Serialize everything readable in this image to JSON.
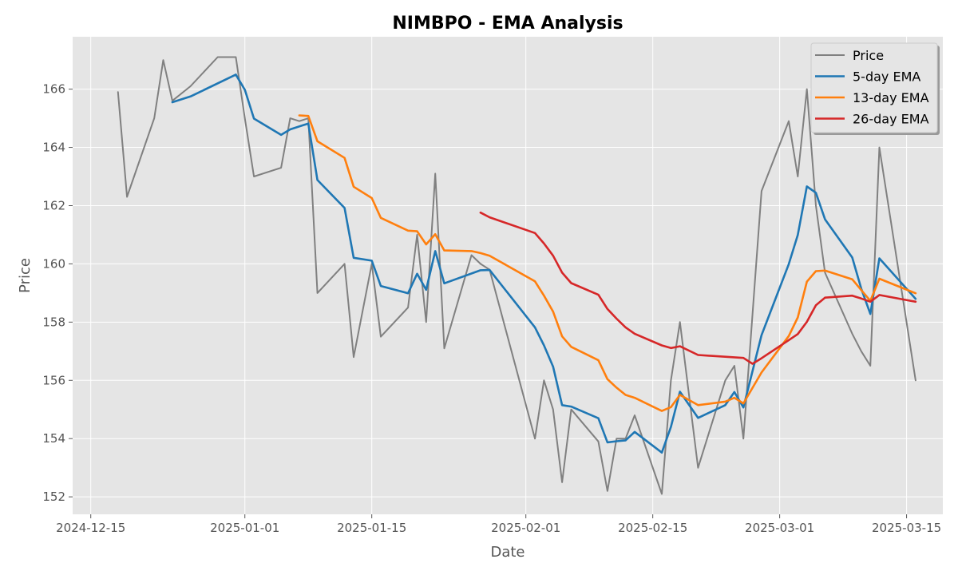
{
  "chart_data": {
    "type": "line",
    "title": "NIMBPO - EMA Analysis",
    "xlabel": "Date",
    "ylabel": "Price",
    "xlim": [
      "2024-12-13",
      "2025-03-19"
    ],
    "ylim": [
      151.4,
      167.8
    ],
    "x_ticks": [
      "2024-12-15",
      "2025-01-01",
      "2025-01-15",
      "2025-02-01",
      "2025-02-15",
      "2025-03-01",
      "2025-03-15"
    ],
    "y_ticks": [
      152,
      154,
      156,
      158,
      160,
      162,
      164,
      166
    ],
    "grid": true,
    "legend_position": "top-right",
    "series": [
      {
        "name": "Price",
        "color": "#808080",
        "x": [
          "2024-12-18",
          "2024-12-19",
          "2024-12-22",
          "2024-12-23",
          "2024-12-24",
          "2024-12-26",
          "2024-12-29",
          "2024-12-31",
          "2025-01-01",
          "2025-01-02",
          "2025-01-05",
          "2025-01-06",
          "2025-01-07",
          "2025-01-08",
          "2025-01-09",
          "2025-01-12",
          "2025-01-13",
          "2025-01-15",
          "2025-01-16",
          "2025-01-19",
          "2025-01-20",
          "2025-01-21",
          "2025-01-22",
          "2025-01-23",
          "2025-01-26",
          "2025-01-27",
          "2025-01-28",
          "2025-02-02",
          "2025-02-03",
          "2025-02-04",
          "2025-02-05",
          "2025-02-06",
          "2025-02-09",
          "2025-02-10",
          "2025-02-11",
          "2025-02-12",
          "2025-02-13",
          "2025-02-16",
          "2025-02-17",
          "2025-02-18",
          "2025-02-20",
          "2025-02-23",
          "2025-02-24",
          "2025-02-25",
          "2025-02-27",
          "2025-03-02",
          "2025-03-03",
          "2025-03-04",
          "2025-03-05",
          "2025-03-06",
          "2025-03-09",
          "2025-03-10",
          "2025-03-11",
          "2025-03-12",
          "2025-03-16"
        ],
        "values": [
          165.9,
          162.3,
          165,
          167,
          165.6,
          166.1,
          167.1,
          167.1,
          165,
          163,
          163.3,
          165,
          164.9,
          165,
          159,
          160,
          156.8,
          160,
          157.5,
          158.5,
          161,
          158,
          163.1,
          157.1,
          160.3,
          160,
          159.8,
          154,
          156,
          155,
          152.5,
          155,
          153.9,
          152.2,
          154,
          154,
          154.8,
          152.1,
          156,
          158,
          153,
          156,
          156.5,
          154,
          162.5,
          164.9,
          163,
          166,
          162,
          159.7,
          157.6,
          157,
          156.5,
          164,
          156
        ]
      },
      {
        "name": "5-day EMA",
        "color": "#1f77b4",
        "x": [
          "2024-12-24",
          "2024-12-26",
          "2024-12-31",
          "2025-01-01",
          "2025-01-02",
          "2025-01-05",
          "2025-01-06",
          "2025-01-08",
          "2025-01-09",
          "2025-01-12",
          "2025-01-13",
          "2025-01-15",
          "2025-01-16",
          "2025-01-19",
          "2025-01-20",
          "2025-01-21",
          "2025-01-22",
          "2025-01-23",
          "2025-01-27",
          "2025-01-28",
          "2025-02-02",
          "2025-02-03",
          "2025-02-04",
          "2025-02-05",
          "2025-02-06",
          "2025-02-09",
          "2025-02-10",
          "2025-02-11",
          "2025-02-12",
          "2025-02-13",
          "2025-02-16",
          "2025-02-17",
          "2025-02-18",
          "2025-02-20",
          "2025-02-23",
          "2025-02-24",
          "2025-02-25",
          "2025-02-27",
          "2025-03-02",
          "2025-03-03",
          "2025-03-04",
          "2025-03-05",
          "2025-03-06",
          "2025-03-09",
          "2025-03-10",
          "2025-03-11",
          "2025-03-12",
          "2025-03-16"
        ],
        "values": [
          165.55,
          165.75,
          166.5,
          165.98,
          164.99,
          164.43,
          164.62,
          164.82,
          162.88,
          161.92,
          160.21,
          160.11,
          159.24,
          158.99,
          159.66,
          159.11,
          160.44,
          159.33,
          159.78,
          159.79,
          157.82,
          157.2,
          156.47,
          155.15,
          155.1,
          154.7,
          153.87,
          153.91,
          153.94,
          154.23,
          153.52,
          154.4,
          155.61,
          154.71,
          155.15,
          155.6,
          155.07,
          157.55,
          159.99,
          160.99,
          162.66,
          162.44,
          161.53,
          160.22,
          159.15,
          158.28,
          160.19,
          158.8
        ]
      },
      {
        "name": "13-day EMA",
        "color": "#ff7f0e",
        "x": [
          "2025-01-07",
          "2025-01-08",
          "2025-01-09",
          "2025-01-12",
          "2025-01-13",
          "2025-01-15",
          "2025-01-16",
          "2025-01-19",
          "2025-01-20",
          "2025-01-21",
          "2025-01-22",
          "2025-01-23",
          "2025-01-26",
          "2025-01-27",
          "2025-01-28",
          "2025-02-02",
          "2025-02-03",
          "2025-02-04",
          "2025-02-05",
          "2025-02-06",
          "2025-02-09",
          "2025-02-10",
          "2025-02-11",
          "2025-02-12",
          "2025-02-13",
          "2025-02-16",
          "2025-02-17",
          "2025-02-18",
          "2025-02-20",
          "2025-02-23",
          "2025-02-24",
          "2025-02-25",
          "2025-02-27",
          "2025-03-02",
          "2025-03-03",
          "2025-03-04",
          "2025-03-05",
          "2025-03-06",
          "2025-03-09",
          "2025-03-10",
          "2025-03-11",
          "2025-03-12",
          "2025-03-16"
        ],
        "values": [
          165.1,
          165.08,
          164.21,
          163.64,
          162.65,
          162.26,
          161.58,
          161.14,
          161.12,
          160.67,
          161.02,
          160.46,
          160.44,
          160.37,
          160.28,
          159.4,
          158.91,
          158.36,
          157.51,
          157.15,
          156.69,
          156.04,
          155.75,
          155.5,
          155.4,
          154.95,
          155.08,
          155.5,
          155.15,
          155.27,
          155.4,
          155.21,
          156.27,
          157.52,
          158.16,
          159.39,
          159.75,
          159.77,
          159.47,
          159.1,
          158.73,
          159.49,
          158.99
        ]
      },
      {
        "name": "26-day EMA",
        "color": "#d62728",
        "x": [
          "2025-01-27",
          "2025-01-28",
          "2025-02-02",
          "2025-02-03",
          "2025-02-04",
          "2025-02-05",
          "2025-02-06",
          "2025-02-09",
          "2025-02-10",
          "2025-02-11",
          "2025-02-12",
          "2025-02-13",
          "2025-02-16",
          "2025-02-17",
          "2025-02-18",
          "2025-02-20",
          "2025-02-25",
          "2025-02-26",
          "2025-02-27",
          "2025-03-02",
          "2025-03-03",
          "2025-03-04",
          "2025-03-05",
          "2025-03-06",
          "2025-03-09",
          "2025-03-10",
          "2025-03-11",
          "2025-03-12",
          "2025-03-16"
        ],
        "values": [
          161.76,
          161.6,
          161.06,
          160.7,
          160.28,
          159.7,
          159.34,
          158.94,
          158.45,
          158.12,
          157.82,
          157.6,
          157.2,
          157.11,
          157.17,
          156.87,
          156.77,
          156.57,
          156.76,
          157.38,
          157.59,
          158.01,
          158.58,
          158.84,
          158.91,
          158.81,
          158.7,
          158.93,
          158.7
        ]
      }
    ]
  }
}
